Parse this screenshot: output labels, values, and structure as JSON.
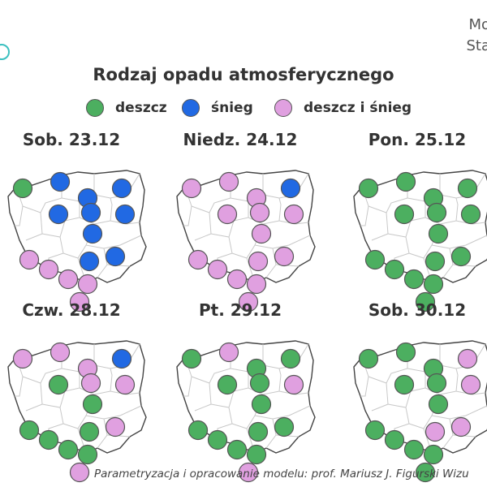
{
  "header": {
    "corner_text_1": "Mo",
    "corner_text_2": "Sta"
  },
  "title": "Rodzaj opadu atmosferycznego",
  "colors": {
    "deszcz": "#4caf60",
    "snieg": "#2169e3",
    "deszcz_i_snieg": "#e0a0e0"
  },
  "legend": [
    {
      "key": "deszcz",
      "label": "deszcz"
    },
    {
      "key": "snieg",
      "label": "śnieg"
    },
    {
      "key": "deszcz_i_snieg",
      "label": "deszcz i śnieg"
    }
  ],
  "panels": [
    {
      "title": "Sob. 23.12",
      "stations": [
        "deszcz",
        "snieg",
        "snieg",
        "snieg",
        "snieg",
        "snieg",
        "snieg",
        "snieg",
        "snieg",
        "deszcz_i_snieg",
        "deszcz_i_snieg",
        "deszcz_i_snieg",
        "deszcz_i_snieg",
        "snieg",
        "deszcz_i_snieg"
      ]
    },
    {
      "title": "Niedz. 24.12",
      "stations": [
        "deszcz_i_snieg",
        "deszcz_i_snieg",
        "deszcz_i_snieg",
        "snieg",
        "deszcz_i_snieg",
        "deszcz_i_snieg",
        "deszcz_i_snieg",
        "deszcz_i_snieg",
        "deszcz_i_snieg",
        "deszcz_i_snieg",
        "deszcz_i_snieg",
        "deszcz_i_snieg",
        "deszcz_i_snieg",
        "deszcz_i_snieg",
        "deszcz_i_snieg"
      ]
    },
    {
      "title": "Pon. 25.12",
      "stations": [
        "deszcz",
        "deszcz",
        "deszcz",
        "deszcz",
        "deszcz",
        "deszcz",
        "deszcz",
        "deszcz",
        "deszcz",
        "deszcz",
        "deszcz",
        "deszcz",
        "deszcz",
        "deszcz",
        "deszcz"
      ]
    },
    {
      "title": "Czw. 28.12",
      "stations": [
        "deszcz_i_snieg",
        "deszcz_i_snieg",
        "deszcz_i_snieg",
        "snieg",
        "deszcz",
        "deszcz_i_snieg",
        "deszcz_i_snieg",
        "deszcz",
        "deszcz_i_snieg",
        "deszcz",
        "deszcz",
        "deszcz",
        "deszcz",
        "deszcz",
        "deszcz_i_snieg"
      ]
    },
    {
      "title": "Pt. 29.12",
      "stations": [
        "deszcz",
        "deszcz_i_snieg",
        "deszcz",
        "deszcz",
        "deszcz",
        "deszcz",
        "deszcz_i_snieg",
        "deszcz",
        "deszcz",
        "deszcz",
        "deszcz",
        "deszcz",
        "deszcz",
        "deszcz",
        "deszcz_i_snieg"
      ]
    },
    {
      "title": "Sob. 30.12",
      "stations": [
        "deszcz",
        "deszcz",
        "deszcz",
        "deszcz_i_snieg",
        "deszcz",
        "deszcz",
        "deszcz_i_snieg",
        "deszcz",
        "deszcz_i_snieg",
        "deszcz",
        "deszcz",
        "deszcz",
        "deszcz",
        "deszcz_i_snieg",
        "deszcz"
      ]
    }
  ],
  "footer": "Parametryzacja i opracowanie modelu: prof. Mariusz J. Figurski   Wizu"
}
